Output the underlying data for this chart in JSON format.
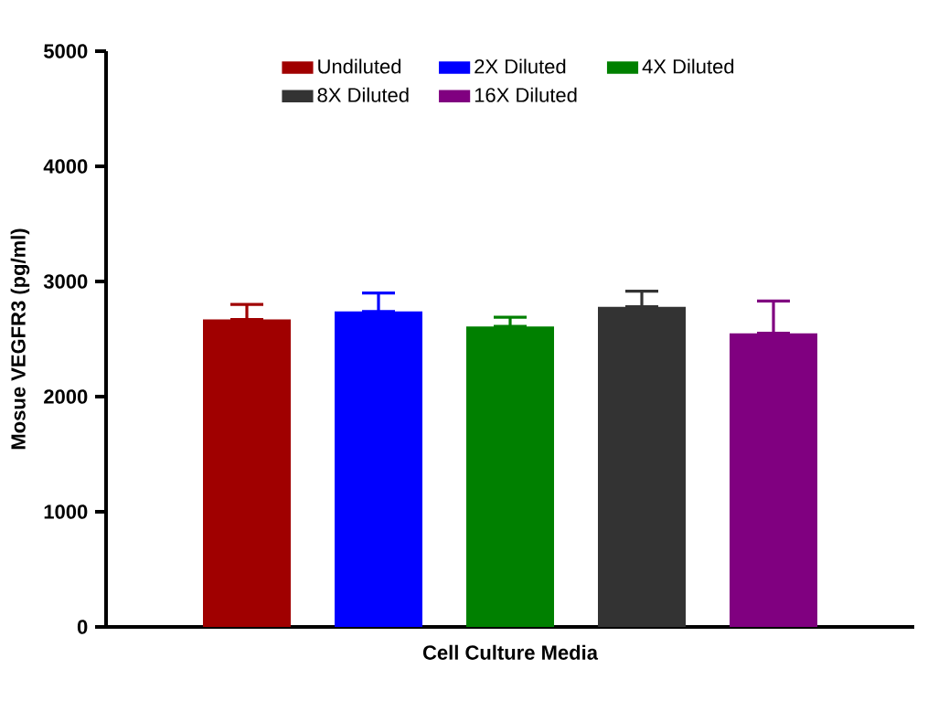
{
  "chart_data": {
    "type": "bar",
    "ylabel": "Mosue VEGFR3 (pg/ml)",
    "categories": [
      "Cell Culture Media"
    ],
    "series": [
      {
        "name": "Undiluted",
        "color": "#a00000",
        "values": [
          2670
        ],
        "errors": [
          [
            2670,
            2800
          ]
        ]
      },
      {
        "name": "2X Diluted",
        "color": "#0000ff",
        "values": [
          2740
        ],
        "errors": [
          [
            2740,
            2900
          ]
        ]
      },
      {
        "name": "4X Diluted",
        "color": "#008000",
        "values": [
          2610
        ],
        "errors": [
          [
            2610,
            2690
          ]
        ]
      },
      {
        "name": "8X Diluted",
        "color": "#333333",
        "values": [
          2780
        ],
        "errors": [
          [
            2780,
            2915
          ]
        ]
      },
      {
        "name": "16X Diluted",
        "color": "#800080",
        "values": [
          2550
        ],
        "errors": [
          [
            2550,
            2830
          ]
        ]
      }
    ],
    "ylim": [
      0,
      5000
    ],
    "yticks": [
      0,
      1000,
      2000,
      3000,
      4000,
      5000
    ],
    "grid": false,
    "legend": "top"
  }
}
